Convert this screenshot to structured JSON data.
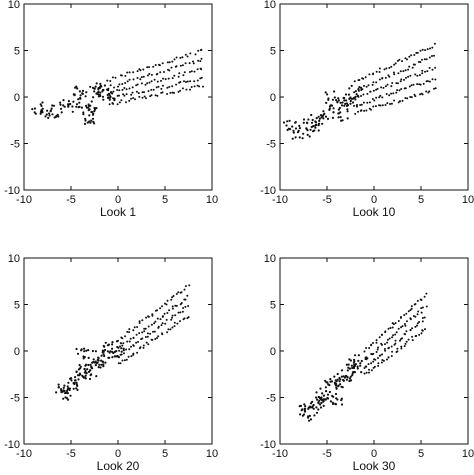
{
  "figure": {
    "colors": {
      "ink": "#111111",
      "background": "#ffffff"
    }
  },
  "chart_data": [
    {
      "type": "scatter",
      "title": "",
      "xlabel": "Look 1",
      "ylabel": "",
      "xlim": [
        -10,
        10
      ],
      "ylim": [
        -10,
        10
      ],
      "xticks": [
        -10,
        -5,
        0,
        5,
        10
      ],
      "yticks": [
        -10,
        -5,
        0,
        5,
        10
      ],
      "xtick_labels": [
        "-10",
        "-5",
        "0",
        "5",
        "10"
      ],
      "ytick_labels": [
        "-10",
        "-5",
        "0",
        "5",
        "10"
      ],
      "grid": false,
      "cluster": [
        [
          -8.5,
          -1.2
        ],
        [
          -7.5,
          -1.8
        ],
        [
          -6.5,
          -1.6
        ],
        [
          -5.5,
          -1.0
        ],
        [
          -4.5,
          -0.4
        ],
        [
          -4.0,
          0.5
        ],
        [
          -3.5,
          -0.8
        ],
        [
          -3.0,
          -1.8
        ],
        [
          -2.5,
          0.6
        ],
        [
          -2.0,
          1.0
        ],
        [
          -1.5,
          0.4
        ],
        [
          -1.0,
          0.2
        ],
        [
          -3.2,
          -2.2
        ]
      ],
      "bands": [
        {
          "x": [
            -1.0,
            9.0
          ],
          "y": [
            1.8,
            5.0
          ]
        },
        {
          "x": [
            -1.0,
            9.0
          ],
          "y": [
            1.0,
            4.0
          ]
        },
        {
          "x": [
            -1.0,
            9.0
          ],
          "y": [
            0.4,
            3.0
          ]
        },
        {
          "x": [
            -1.0,
            9.0
          ],
          "y": [
            -0.2,
            2.0
          ]
        },
        {
          "x": [
            -1.0,
            9.0
          ],
          "y": [
            -0.8,
            1.2
          ]
        }
      ]
    },
    {
      "type": "scatter",
      "title": "",
      "xlabel": "Look 10",
      "ylabel": "",
      "xlim": [
        -10,
        10
      ],
      "ylim": [
        -10,
        10
      ],
      "xticks": [
        -10,
        -5,
        0,
        5,
        10
      ],
      "yticks": [
        -10,
        -5,
        0,
        5,
        10
      ],
      "xtick_labels": [
        "-10",
        "-5",
        "0",
        "5",
        "10"
      ],
      "ytick_labels": [
        "-10",
        "-5",
        "0",
        "5",
        "10"
      ],
      "grid": false,
      "cluster": [
        [
          -9.0,
          -3.2
        ],
        [
          -8.0,
          -3.8
        ],
        [
          -7.0,
          -3.0
        ],
        [
          -6.0,
          -2.4
        ],
        [
          -5.0,
          -1.8
        ],
        [
          -4.5,
          0.0
        ],
        [
          -4.0,
          -1.0
        ],
        [
          -3.5,
          -2.0
        ],
        [
          -3.0,
          -0.8
        ],
        [
          -2.5,
          -0.2
        ],
        [
          -2.0,
          0.6
        ],
        [
          -6.5,
          -3.6
        ]
      ],
      "bands": [
        {
          "x": [
            -2.0,
            6.5
          ],
          "y": [
            1.6,
            5.6
          ]
        },
        {
          "x": [
            -2.0,
            6.5
          ],
          "y": [
            0.6,
            4.4
          ]
        },
        {
          "x": [
            -2.0,
            6.5
          ],
          "y": [
            -0.2,
            3.2
          ]
        },
        {
          "x": [
            -2.0,
            6.5
          ],
          "y": [
            -1.0,
            2.0
          ]
        },
        {
          "x": [
            -2.0,
            6.5
          ],
          "y": [
            -1.8,
            0.8
          ]
        }
      ]
    },
    {
      "type": "scatter",
      "title": "",
      "xlabel": "Look 20",
      "ylabel": "",
      "xlim": [
        -10,
        10
      ],
      "ylim": [
        -10,
        10
      ],
      "xticks": [
        -10,
        -5,
        0,
        5,
        10
      ],
      "yticks": [
        -10,
        -5,
        0,
        5,
        10
      ],
      "xtick_labels": [
        "-10",
        "-5",
        "0",
        "5",
        "10"
      ],
      "ytick_labels": [
        "-10",
        "-5",
        "0",
        "5",
        "10"
      ],
      "grid": false,
      "cluster": [
        [
          -6.0,
          -4.2
        ],
        [
          -5.5,
          -4.6
        ],
        [
          -5.0,
          -3.8
        ],
        [
          -4.5,
          -3.2
        ],
        [
          -4.0,
          -2.6
        ],
        [
          -3.5,
          -1.8
        ],
        [
          -3.0,
          -2.4
        ],
        [
          -2.5,
          -1.2
        ],
        [
          -2.0,
          -0.6
        ],
        [
          -1.5,
          -1.4
        ],
        [
          -1.0,
          0.2
        ],
        [
          -0.5,
          -0.4
        ],
        [
          0.0,
          0.4
        ],
        [
          -3.8,
          -0.4
        ]
      ],
      "bands": [
        {
          "x": [
            0.0,
            7.5
          ],
          "y": [
            1.2,
            7.0
          ]
        },
        {
          "x": [
            0.0,
            7.5
          ],
          "y": [
            0.2,
            5.8
          ]
        },
        {
          "x": [
            0.0,
            7.5
          ],
          "y": [
            -0.6,
            4.8
          ]
        },
        {
          "x": [
            0.0,
            7.5
          ],
          "y": [
            -1.4,
            3.8
          ]
        }
      ]
    },
    {
      "type": "scatter",
      "title": "",
      "xlabel": "Look 30",
      "ylabel": "",
      "xlim": [
        -10,
        10
      ],
      "ylim": [
        -10,
        10
      ],
      "xticks": [
        -10,
        -5,
        0,
        5,
        10
      ],
      "yticks": [
        -10,
        -5,
        0,
        5,
        10
      ],
      "xtick_labels": [
        "-10",
        "-5",
        "0",
        "5",
        "10"
      ],
      "ytick_labels": [
        "-10",
        "-5",
        "0",
        "5",
        "10"
      ],
      "grid": false,
      "cluster": [
        [
          -7.5,
          -6.4
        ],
        [
          -7.0,
          -6.8
        ],
        [
          -6.5,
          -6.0
        ],
        [
          -6.0,
          -5.4
        ],
        [
          -5.5,
          -5.0
        ],
        [
          -5.0,
          -4.6
        ],
        [
          -4.5,
          -3.8
        ],
        [
          -4.0,
          -3.4
        ],
        [
          -3.5,
          -3.0
        ],
        [
          -3.0,
          -2.6
        ],
        [
          -2.5,
          -2.0
        ],
        [
          -2.0,
          -1.6
        ],
        [
          -1.5,
          -1.0
        ],
        [
          -4.0,
          -5.2
        ]
      ],
      "bands": [
        {
          "x": [
            -1.0,
            5.5
          ],
          "y": [
            0.0,
            6.0
          ]
        },
        {
          "x": [
            -1.0,
            5.5
          ],
          "y": [
            -1.0,
            4.8
          ]
        },
        {
          "x": [
            -1.0,
            5.5
          ],
          "y": [
            -1.8,
            3.6
          ]
        },
        {
          "x": [
            -1.0,
            5.5
          ],
          "y": [
            -2.6,
            2.4
          ]
        }
      ]
    }
  ]
}
